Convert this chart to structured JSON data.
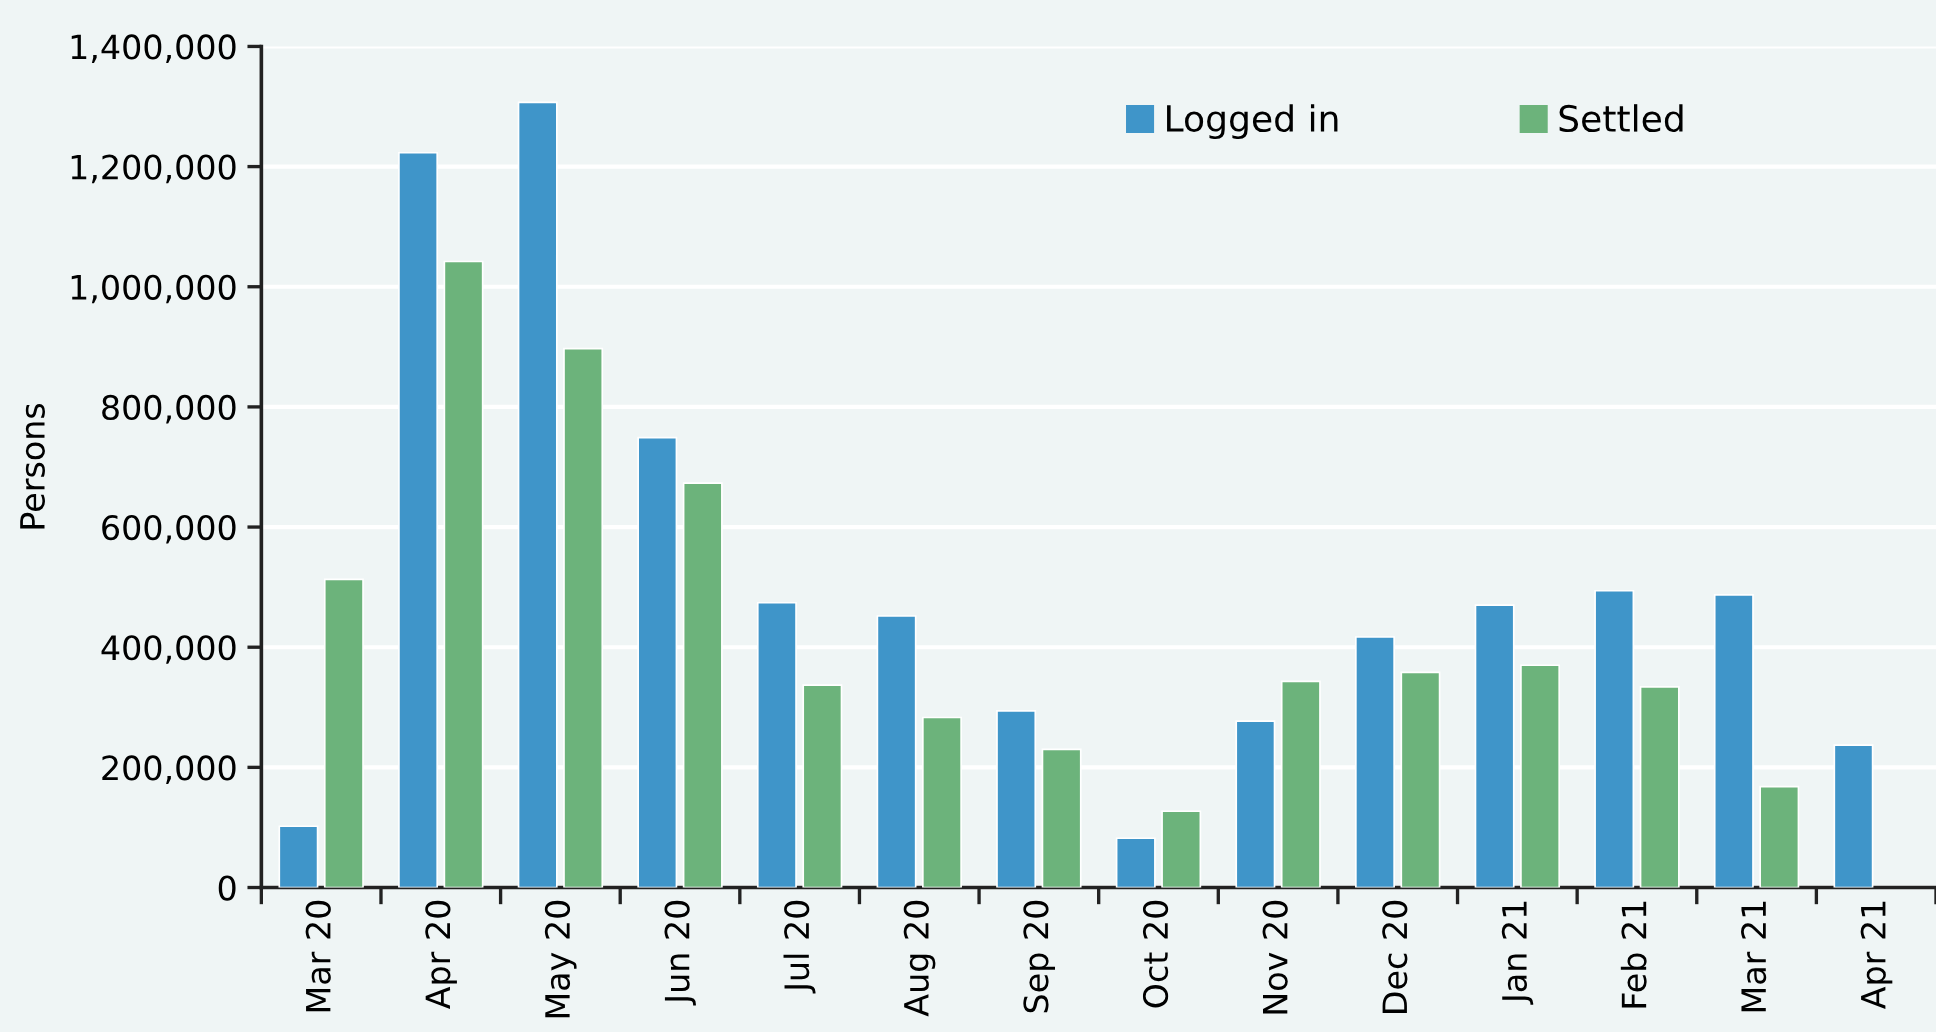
{
  "chart_data": {
    "type": "bar",
    "ylabel": "Persons",
    "categories": [
      "Mar 20",
      "Apr 20",
      "May 20",
      "Jun 20",
      "Jul 20",
      "Aug 20",
      "Sep 20",
      "Oct 20",
      "Nov 20",
      "Dec 20",
      "Jan 21",
      "Feb 21",
      "Mar 21",
      "Apr 21"
    ],
    "series": [
      {
        "name": "Logged in",
        "color": "#3f95c9",
        "values": [
          102000,
          1223000,
          1307000,
          749000,
          474000,
          452000,
          294000,
          82000,
          277000,
          417000,
          470000,
          494000,
          487000,
          237000
        ]
      },
      {
        "name": "Settled",
        "color": "#6cb37b",
        "values": [
          513000,
          1042000,
          897000,
          673000,
          337000,
          283000,
          230000,
          127000,
          343000,
          358000,
          370000,
          334000,
          168000,
          null
        ]
      }
    ],
    "ylim": [
      0,
      1400000
    ],
    "yticks": [
      {
        "value": 0,
        "label": "0"
      },
      {
        "value": 200000,
        "label": "200,000"
      },
      {
        "value": 400000,
        "label": "400,000"
      },
      {
        "value": 600000,
        "label": "600,000"
      },
      {
        "value": 800000,
        "label": "800,000"
      },
      {
        "value": 1000000,
        "label": "1,000,000"
      },
      {
        "value": 1200000,
        "label": "1,200,000"
      },
      {
        "value": 1400000,
        "label": "1,400,000"
      }
    ],
    "grid": "y",
    "legend": "top right"
  }
}
